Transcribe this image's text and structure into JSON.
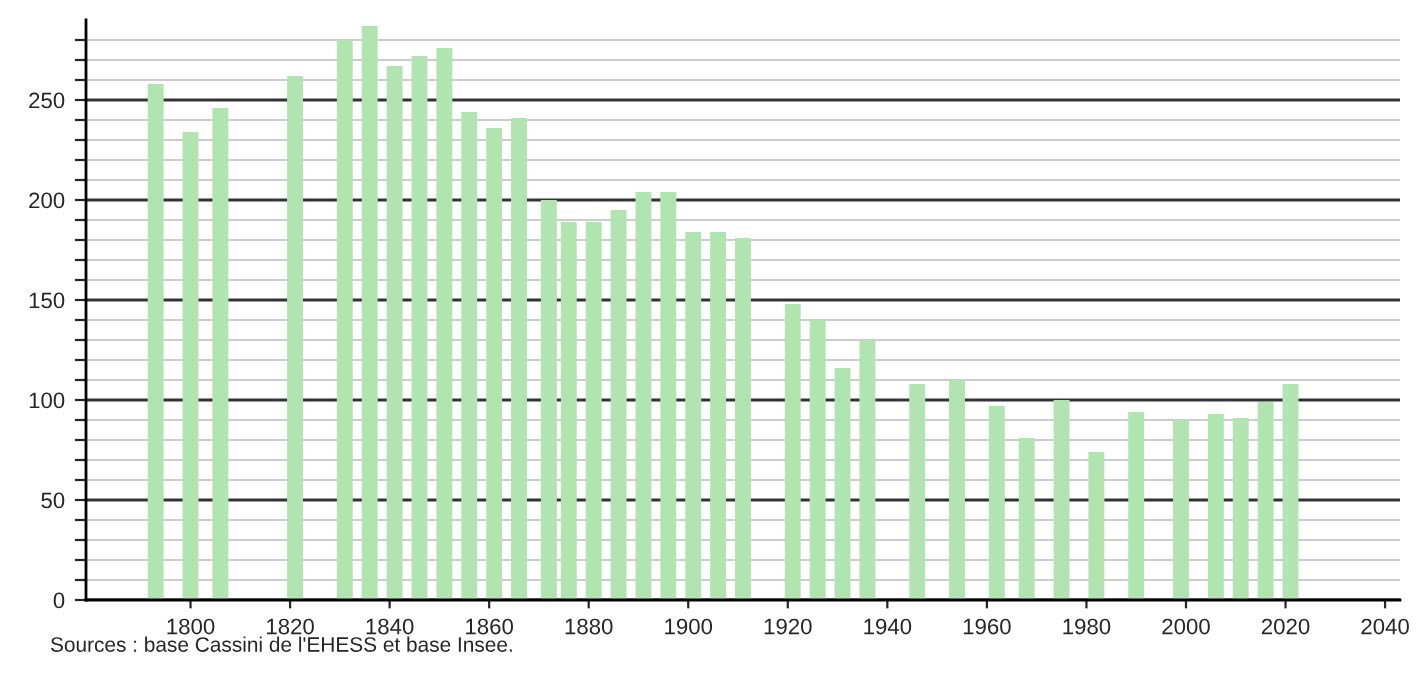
{
  "chart_data": {
    "type": "bar",
    "x": [
      1793,
      1800,
      1806,
      1821,
      1831,
      1836,
      1841,
      1846,
      1851,
      1856,
      1861,
      1866,
      1872,
      1876,
      1881,
      1886,
      1891,
      1896,
      1901,
      1906,
      1911,
      1921,
      1926,
      1931,
      1936,
      1946,
      1954,
      1962,
      1968,
      1975,
      1982,
      1990,
      1999,
      2006,
      2011,
      2016,
      2021
    ],
    "values": [
      258,
      234,
      246,
      262,
      280,
      287,
      267,
      272,
      276,
      244,
      236,
      241,
      200,
      189,
      189,
      195,
      204,
      204,
      184,
      184,
      181,
      148,
      140,
      116,
      130,
      108,
      110,
      97,
      81,
      100,
      74,
      94,
      90,
      93,
      91,
      99,
      108
    ],
    "color": "#b2e4b2",
    "xlim": [
      1779,
      2043
    ],
    "xticks": [
      1800,
      1820,
      1840,
      1860,
      1880,
      1900,
      1920,
      1940,
      1960,
      1980,
      2000,
      2020,
      2040
    ],
    "ylim": [
      0,
      290
    ],
    "yticks": [
      0,
      {
        "value": 10,
        "label": null
      },
      {
        "value": 20,
        "label": null
      },
      {
        "value": 30,
        "label": null
      },
      {
        "value": 40,
        "label": null
      },
      50,
      {
        "value": 60,
        "label": null
      },
      {
        "value": 70,
        "label": null
      },
      {
        "value": 80,
        "label": null
      },
      {
        "value": 90,
        "label": null
      },
      100,
      {
        "value": 110,
        "label": null
      },
      {
        "value": 120,
        "label": null
      },
      {
        "value": 130,
        "label": null
      },
      {
        "value": 140,
        "label": null
      },
      150,
      {
        "value": 160,
        "label": null
      },
      {
        "value": 170,
        "label": null
      },
      {
        "value": 180,
        "label": null
      },
      {
        "value": 190,
        "label": null
      },
      200,
      {
        "value": 210,
        "label": null
      },
      {
        "value": 220,
        "label": null
      },
      {
        "value": 230,
        "label": null
      },
      {
        "value": 240,
        "label": null
      },
      250,
      {
        "value": 260,
        "label": null
      },
      {
        "value": 270,
        "label": null
      },
      {
        "value": 280,
        "label": null
      }
    ],
    "grid": "y",
    "annotations": [
      "Sources : base Cassini de l'EHESS et base Insee."
    ]
  }
}
